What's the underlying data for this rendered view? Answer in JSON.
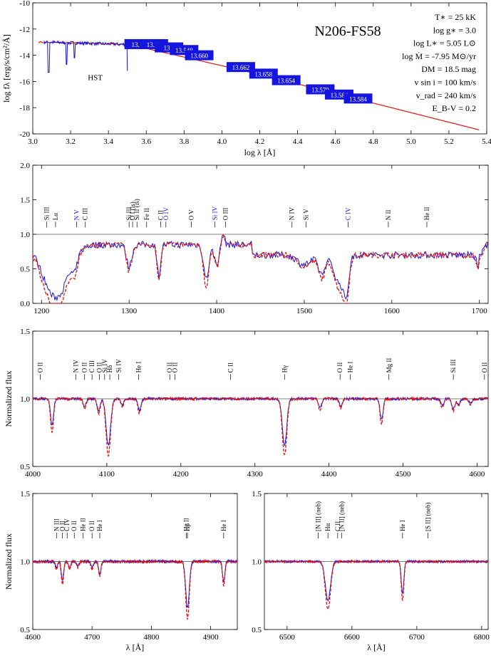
{
  "chart_data": [
    {
      "type": "line",
      "title": "N206-FS58",
      "xlabel": "log λ [Å]",
      "ylabel": "log fλ [erg/s/cm²/Å]",
      "xlim": [
        3.0,
        5.4
      ],
      "ylim": [
        -20,
        -10
      ],
      "xticks": [
        "3.0",
        "3.2",
        "3.4",
        "3.6",
        "3.8",
        "4.0",
        "4.2",
        "4.4",
        "4.6",
        "4.8",
        "5.0",
        "5.2",
        "5.4"
      ],
      "yticks": [
        "-10",
        "-12",
        "-14",
        "-16",
        "-18",
        "-20"
      ],
      "annotations": [
        "HST"
      ],
      "params": [
        "T∗ = 25 kK",
        "log g∗ = 3.0",
        "log L∗ = 5.05 L⊙",
        "log Ṁ = -7.95 M⊙/yr",
        "DM = 18.5 mag",
        "v sin i = 100 km/s",
        "v_rad = 240 km/s",
        "E_B-V = 0.2"
      ],
      "photometry": [
        {
          "x": 3.56,
          "y": -13.15,
          "label": "13.13"
        },
        {
          "x": 3.64,
          "y": -13.15,
          "label": "13.77"
        },
        {
          "x": 3.72,
          "y": -13.4,
          "label": "13.?"
        },
        {
          "x": 3.8,
          "y": -13.6,
          "label": "13.548"
        },
        {
          "x": 3.88,
          "y": -14.0,
          "label": "13.660"
        },
        {
          "x": 4.1,
          "y": -14.9,
          "label": "13.662"
        },
        {
          "x": 4.22,
          "y": -15.4,
          "label": "13.658"
        },
        {
          "x": 4.34,
          "y": -15.9,
          "label": "13.654"
        },
        {
          "x": 4.52,
          "y": -16.6,
          "label": "13.579"
        },
        {
          "x": 4.62,
          "y": -17.0,
          "label": "13.584"
        },
        {
          "x": 4.72,
          "y": -17.3,
          "label": "13.584"
        }
      ],
      "series": []
    },
    {
      "type": "line",
      "xlim": [
        1190,
        1710
      ],
      "ylim": [
        0,
        2.0
      ],
      "xticks": [
        "1200",
        "1300",
        "1400",
        "1500",
        "1600",
        "1700"
      ],
      "yticks": [
        "0.0",
        "0.5",
        "1.0",
        "1.5",
        "2.0"
      ],
      "lines": [
        {
          "x": 1206,
          "label": "Si III",
          "color": "#000"
        },
        {
          "x": 1216,
          "label": "Lα",
          "color": "#000"
        },
        {
          "x": 1240,
          "label": "N V",
          "color": "#1515e0"
        },
        {
          "x": 1250,
          "label": "C III",
          "color": "#000"
        },
        {
          "x": 1300,
          "label": "Si III",
          "color": "#000"
        },
        {
          "x": 1304,
          "label": "O I (is)",
          "color": "#000"
        },
        {
          "x": 1309,
          "label": "Si II (is)",
          "color": "#000"
        },
        {
          "x": 1320,
          "label": "Fe II",
          "color": "#000"
        },
        {
          "x": 1336,
          "label": "C II",
          "color": "#000"
        },
        {
          "x": 1342,
          "label": "O IV",
          "color": "#1515e0"
        },
        {
          "x": 1371,
          "label": "O V",
          "color": "#000"
        },
        {
          "x": 1398,
          "label": "Si IV",
          "color": "#1515e0"
        },
        {
          "x": 1410,
          "label": "O III",
          "color": "#000"
        },
        {
          "x": 1486,
          "label": "N IV",
          "color": "#000"
        },
        {
          "x": 1502,
          "label": "Si V",
          "color": "#000"
        },
        {
          "x": 1550,
          "label": "C IV",
          "color": "#1515e0"
        },
        {
          "x": 1596,
          "label": "N II",
          "color": "#000"
        },
        {
          "x": 1640,
          "label": "He II",
          "color": "#000"
        }
      ]
    },
    {
      "type": "line",
      "ylabel": "Normalized flux",
      "xlabel": "",
      "xlim": [
        4000,
        4615
      ],
      "ylim": [
        0.5,
        1.5
      ],
      "xticks": [
        "4000",
        "4100",
        "4200",
        "4300",
        "4400",
        "4500",
        "4600"
      ],
      "yticks": [
        "0.5",
        "1.0",
        "1.5"
      ],
      "lines": [
        {
          "x": 4010,
          "label": "O II"
        },
        {
          "x": 4058,
          "label": "N IV"
        },
        {
          "x": 4070,
          "label": "O II"
        },
        {
          "x": 4080,
          "label": "C III"
        },
        {
          "x": 4090,
          "label": "O II"
        },
        {
          "x": 4097,
          "label": "Si IV"
        },
        {
          "x": 4104,
          "label": "Hδ"
        },
        {
          "x": 4116,
          "label": "Si IV"
        },
        {
          "x": 4143,
          "label": "He I"
        },
        {
          "x": 4185,
          "label": "O II"
        },
        {
          "x": 4192,
          "label": "O II"
        },
        {
          "x": 4267,
          "label": "C II"
        },
        {
          "x": 4340,
          "label": "Hγ"
        },
        {
          "x": 4415,
          "label": "O II"
        },
        {
          "x": 4429,
          "label": "He I"
        },
        {
          "x": 4481,
          "label": "Mg II"
        },
        {
          "x": 4568,
          "label": "Si III"
        },
        {
          "x": 4610,
          "label": "O II"
        }
      ]
    },
    {
      "type": "line",
      "ylabel": "Normalized flux",
      "xlabel": "λ [Å]",
      "xlim": [
        4600,
        4945
      ],
      "ylim": [
        0.5,
        1.5
      ],
      "xticks": [
        "4600",
        "4700",
        "4800",
        "4900"
      ],
      "yticks": [
        "0.5",
        "1.0",
        "1.5"
      ],
      "lines": [
        {
          "x": 4640,
          "label": "N III"
        },
        {
          "x": 4650,
          "label": "O II"
        },
        {
          "x": 4658,
          "label": "C IV"
        },
        {
          "x": 4670,
          "label": "O II"
        },
        {
          "x": 4685,
          "label": "He II"
        },
        {
          "x": 4700,
          "label": "O II"
        },
        {
          "x": 4713,
          "label": "He I"
        },
        {
          "x": 4859,
          "label": "He II"
        },
        {
          "x": 4861,
          "label": "Hβ"
        },
        {
          "x": 4922,
          "label": "He I"
        }
      ]
    },
    {
      "type": "line",
      "xlabel": "λ [Å]",
      "xlim": [
        6465,
        6810
      ],
      "ylim": [
        0.5,
        1.5
      ],
      "xticks": [
        "6500",
        "6600",
        "6700",
        "6800"
      ],
      "yticks": [
        "0.5",
        "1.0",
        "1.5"
      ],
      "lines": [
        {
          "x": 6548,
          "label": "[N II] (neb)"
        },
        {
          "x": 6563,
          "label": "Hα"
        },
        {
          "x": 6578,
          "label": "C II"
        },
        {
          "x": 6584,
          "label": "[N II] (neb)"
        },
        {
          "x": 6678,
          "label": "He I"
        },
        {
          "x": 6717,
          "label": "[S II] (neb)"
        }
      ]
    }
  ]
}
